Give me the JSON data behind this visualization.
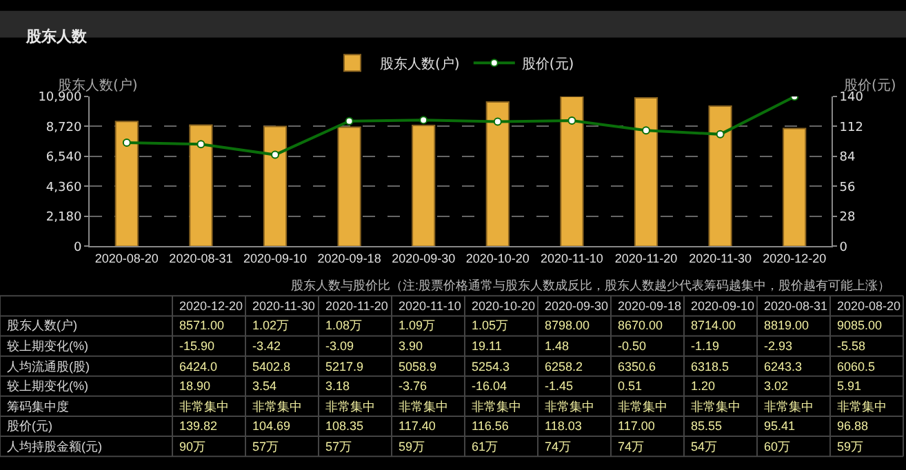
{
  "chart_data": [
    {
      "type": "bar",
      "title": "股东人数",
      "categories": [
        "2020-08-20",
        "2020-08-31",
        "2020-09-10",
        "2020-09-18",
        "2020-09-30",
        "2020-10-20",
        "2020-11-10",
        "2020-11-20",
        "2020-11-30",
        "2020-12-20"
      ],
      "series": [
        {
          "name": "股东人数(户)",
          "type": "bar",
          "color": "#e8ae3c",
          "values": [
            9085,
            8819,
            8714,
            8670,
            8798,
            10500,
            10900,
            10800,
            10200,
            8571
          ]
        },
        {
          "name": "股价(元)",
          "type": "line",
          "axis": "y2",
          "color": "#0a6e0a",
          "values": [
            96.88,
            95.41,
            85.55,
            117.0,
            118.03,
            116.56,
            117.4,
            108.35,
            104.69,
            139.82
          ]
        }
      ],
      "ylabel": "股东人数(户)",
      "y2label": "股价(元)",
      "ylim": [
        0,
        10900
      ],
      "yticks": [
        0,
        {
          "value": 2180,
          "label": "2,180"
        },
        {
          "value": 4360,
          "label": "4,360"
        },
        {
          "value": 6540,
          "label": "6,540"
        },
        {
          "value": 8720,
          "label": "8,720"
        },
        {
          "value": 10900,
          "label": "10,900"
        }
      ],
      "y2lim": [
        0,
        140
      ],
      "y2ticks": [
        0,
        28,
        56,
        84,
        112,
        140
      ],
      "grid": "y",
      "legend": "top",
      "marker": "circle"
    },
    {
      "type": "other",
      "title": "股东人数与股价比（注:股票价格通常与股东人数成反比，股东人数越少代表筹码越集中，股价越有可能上涨）",
      "categories": [
        "2020-12-20",
        "2020-11-30",
        "2020-11-20",
        "2020-11-10",
        "2020-10-20",
        "2020-09-30",
        "2020-09-18",
        "2020-09-10",
        "2020-08-31",
        "2020-08-20"
      ],
      "y_categories": [
        "股东人数(户)",
        "较上期变化(%)",
        "人均流通股(股)",
        "较上期变化(%)",
        "筹码集中度",
        "股价(元)",
        "人均持股金额(元)"
      ],
      "cell_labels": [
        [
          "8571.00",
          "1.02万",
          "1.08万",
          "1.09万",
          "1.05万",
          "8798.00",
          "8670.00",
          "8714.00",
          "8819.00",
          "9085.00"
        ],
        [
          "-15.90",
          "-3.42",
          "-3.09",
          "3.90",
          "19.11",
          "1.48",
          "-0.50",
          "-1.19",
          "-2.93",
          "-5.58"
        ],
        [
          "6424.0",
          "5402.8",
          "5217.9",
          "5058.9",
          "5254.3",
          "6258.2",
          "6350.6",
          "6318.5",
          "6243.3",
          "6060.5"
        ],
        [
          "18.90",
          "3.54",
          "3.18",
          "-3.76",
          "-16.04",
          "-1.45",
          "0.51",
          "1.20",
          "3.02",
          "5.91"
        ],
        [
          "非常集中",
          "非常集中",
          "非常集中",
          "非常集中",
          "非常集中",
          "非常集中",
          "非常集中",
          "非常集中",
          "非常集中",
          "非常集中"
        ],
        [
          "139.82",
          "104.69",
          "108.35",
          "117.40",
          "116.56",
          "118.03",
          "117.00",
          "85.55",
          "95.41",
          "96.88"
        ],
        [
          "90万",
          "57万",
          "57万",
          "59万",
          "61万",
          "74万",
          "74万",
          "54万",
          "60万",
          "59万"
        ]
      ]
    }
  ]
}
